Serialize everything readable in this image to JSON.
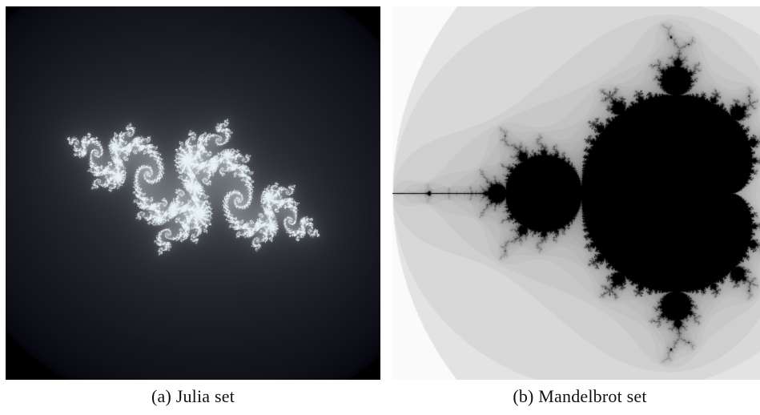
{
  "figure": {
    "subfigures": [
      {
        "label": "(a)",
        "caption": "Julia set",
        "image": {
          "subject": "julia-set",
          "background_color": "#02020a",
          "foreground_color": "#e8f2f6"
        }
      },
      {
        "label": "(b)",
        "caption": "Mandelbrot set",
        "image": {
          "subject": "mandelbrot-set",
          "background_color": "#fafafa",
          "foreground_color": "#000000"
        }
      }
    ]
  }
}
